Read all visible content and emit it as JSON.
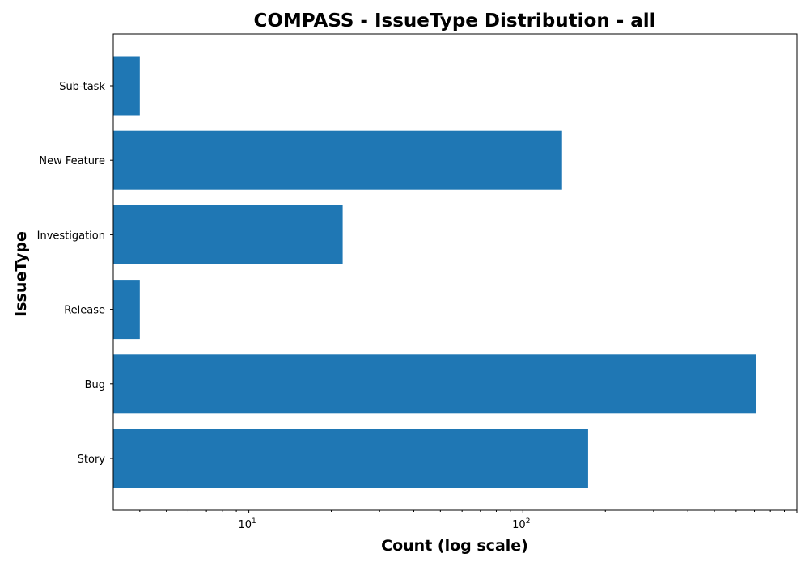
{
  "chart_data": {
    "type": "bar",
    "orientation": "horizontal",
    "title": "COMPASS - IssueType Distribution - all",
    "xlabel": "Count (log scale)",
    "ylabel": "IssueType",
    "x_scale": "log",
    "xlim": [
      3.2,
      1000
    ],
    "categories": [
      "Story",
      "Bug",
      "Release",
      "Investigation",
      "New Feature",
      "Sub-task"
    ],
    "values": [
      173,
      710,
      4,
      22,
      139,
      4
    ],
    "x_major_ticks": [
      {
        "value": 10,
        "base": "10",
        "exp": "1"
      },
      {
        "value": 100,
        "base": "10",
        "exp": "2"
      }
    ],
    "bar_color": "#1f77b4",
    "grid": false,
    "legend": "none"
  }
}
